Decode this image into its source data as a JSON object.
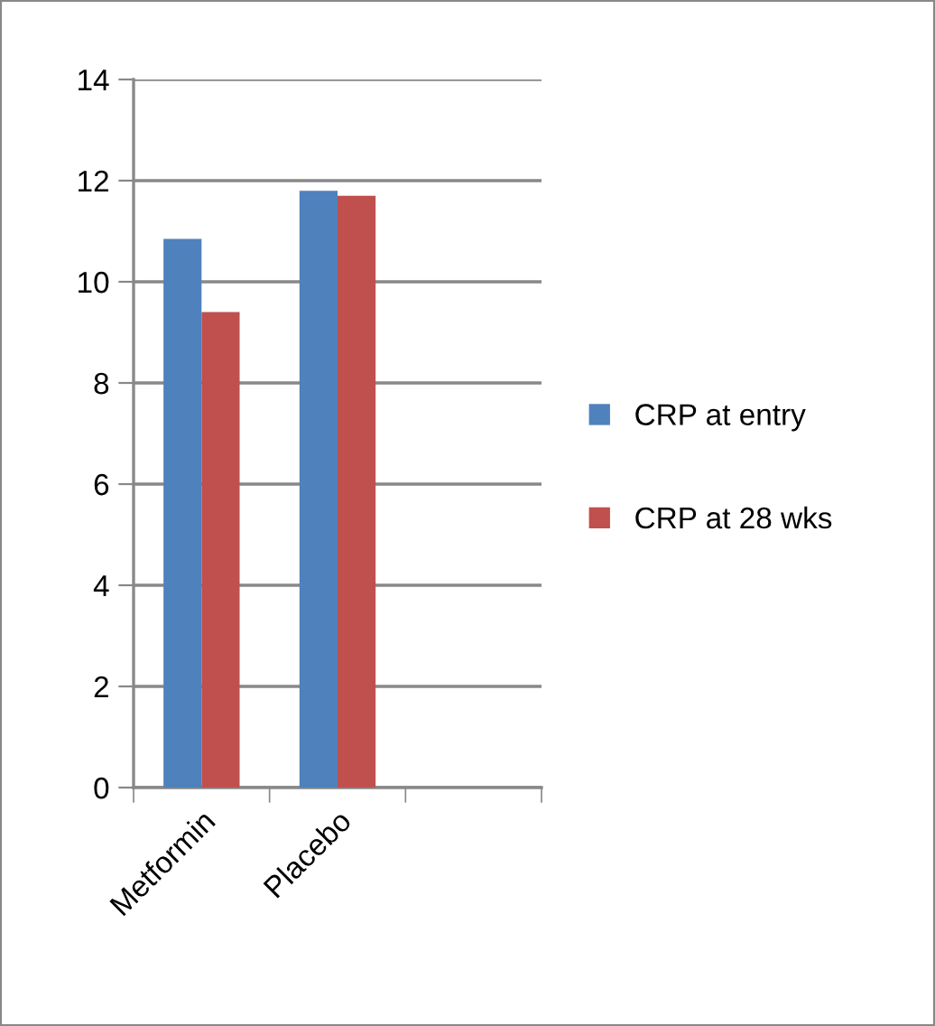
{
  "chart_data": {
    "type": "bar",
    "categories": [
      "Metformin",
      "Placebo",
      null
    ],
    "series": [
      {
        "name": "CRP at entry",
        "color": "#4f81bd",
        "values": [
          10.85,
          11.8,
          null
        ]
      },
      {
        "name": "CRP at 28 wks",
        "color": "#c0504d",
        "values": [
          9.4,
          11.7,
          null
        ]
      }
    ],
    "ylim": [
      0,
      14
    ],
    "yticks": [
      0,
      2,
      4,
      6,
      8,
      10,
      12,
      14
    ],
    "grid": "y",
    "legend": "right"
  }
}
